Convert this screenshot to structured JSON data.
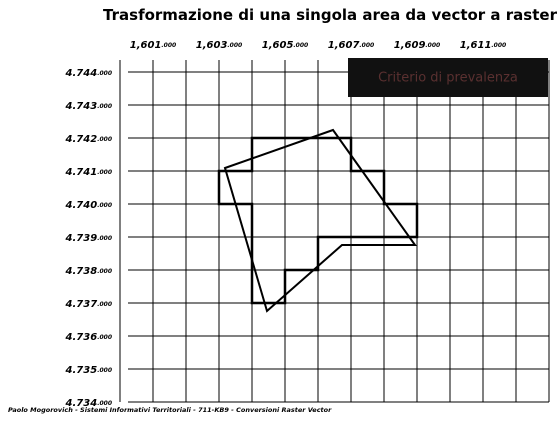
{
  "title": "Trasformazione di una singola area da vector a raster",
  "badge": "Criterio di prevalenza",
  "x_labels": [
    {
      "main": "1,601",
      "small": ".000"
    },
    {
      "main": "1,603",
      "small": ".000"
    },
    {
      "main": "1,605",
      "small": ".000"
    },
    {
      "main": "1,607",
      "small": ".000"
    },
    {
      "main": "1,609",
      "small": ".000"
    },
    {
      "main": "1,611",
      "small": ".000"
    }
  ],
  "y_labels": [
    {
      "main": "4.744",
      "small": ".000"
    },
    {
      "main": "4.743",
      "small": ".000"
    },
    {
      "main": "4.742",
      "small": ".000"
    },
    {
      "main": "4.741",
      "small": ".000"
    },
    {
      "main": "4.740",
      "small": ".000"
    },
    {
      "main": "4.739",
      "small": ".000"
    },
    {
      "main": "4.738",
      "small": ".000"
    },
    {
      "main": "4.737",
      "small": ".000"
    },
    {
      "main": "4.736",
      "small": ".000"
    },
    {
      "main": "4.735",
      "small": ".000"
    },
    {
      "main": "4.734",
      "small": ".000"
    }
  ],
  "footer": "Paolo Mogorovich  -  Sistemi Informativi Territoriali  -  711-KB9  -  Conversioni Raster Vector"
}
